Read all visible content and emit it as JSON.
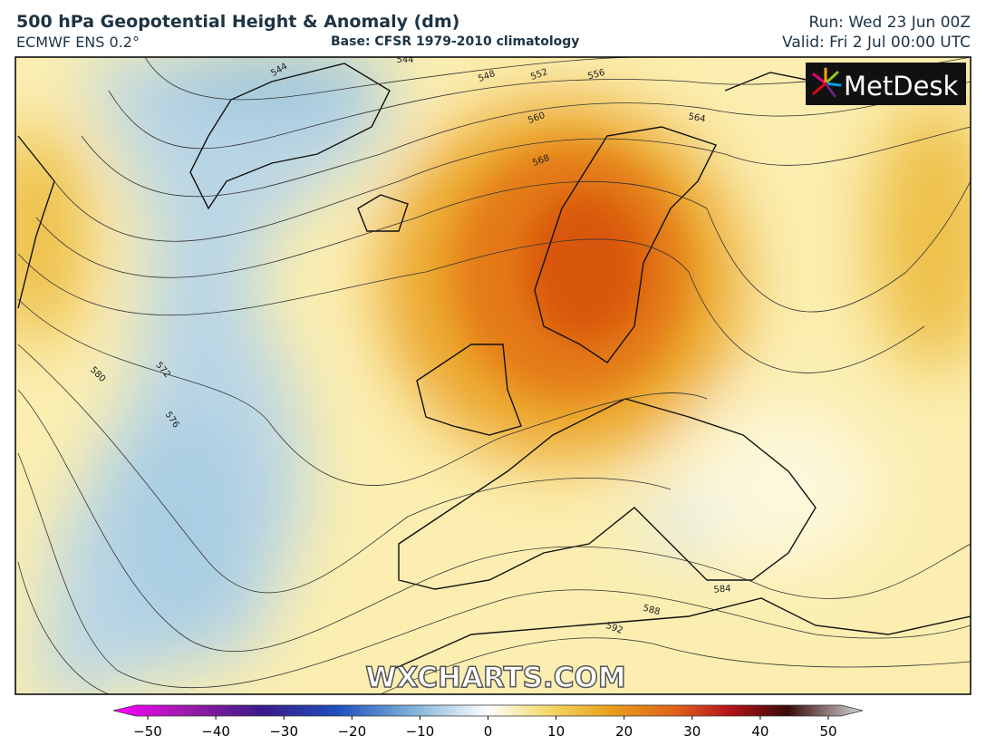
{
  "header": {
    "title": "500 hPa Geopotential Height & Anomaly (dm)",
    "model": "ECMWF ENS 0.2°",
    "base": "Base: CFSR 1979-2010 climatology",
    "run": "Run: Wed 23 Jun 00Z",
    "valid": "Valid: Fri 2 Jul 00:00 UTC"
  },
  "logo": "MetDesk",
  "watermark": "WXCHARTS.COM",
  "contour_labels": [
    "544",
    "544",
    "548",
    "552",
    "556",
    "560",
    "564",
    "568",
    "572",
    "576",
    "580",
    "584",
    "588",
    "592"
  ],
  "colorbar": {
    "ticks": [
      "−50",
      "−40",
      "−30",
      "−20",
      "−10",
      "0",
      "10",
      "20",
      "30",
      "40",
      "50"
    ]
  }
}
